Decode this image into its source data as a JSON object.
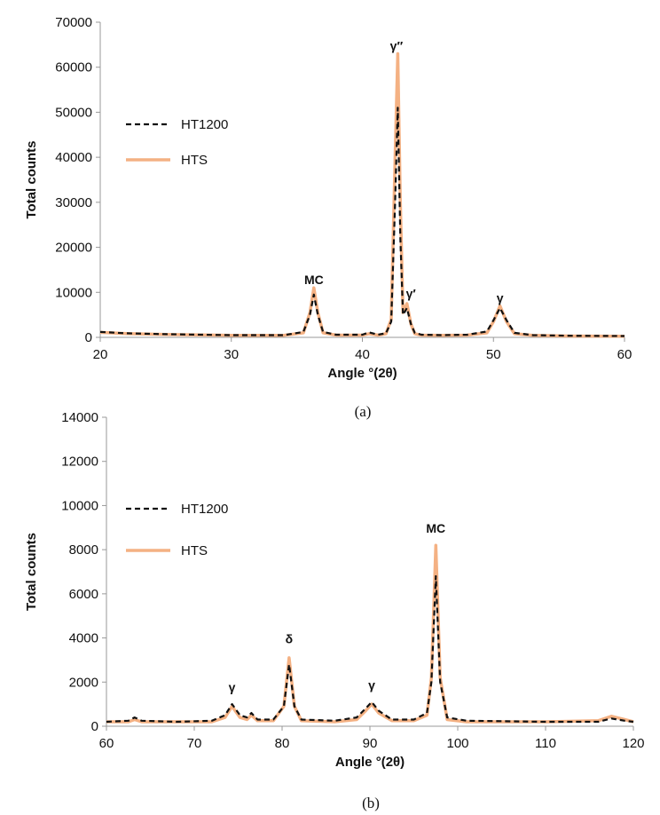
{
  "chart_data": [
    {
      "type": "line",
      "panel_label": "(a)",
      "xlabel": "Angle °(2θ)",
      "ylabel": "Total counts",
      "xlim": [
        20,
        60
      ],
      "ylim": [
        0,
        70000
      ],
      "xticks": [
        20,
        30,
        40,
        50,
        60
      ],
      "yticks": [
        0,
        10000,
        20000,
        30000,
        40000,
        50000,
        60000,
        70000
      ],
      "legend_position": "upper-left",
      "series": [
        {
          "name": "HT1200",
          "style": "dashed",
          "color": "#111111",
          "x": [
            20,
            22,
            25,
            30,
            34,
            35.5,
            36.0,
            36.3,
            36.6,
            37.0,
            38,
            40,
            40.5,
            41.2,
            41.8,
            42.2,
            42.5,
            42.7,
            42.9,
            43.1,
            43.4,
            43.7,
            44.0,
            44.5,
            46,
            48,
            49.5,
            50.0,
            50.5,
            51.0,
            51.6,
            53,
            56,
            60
          ],
          "y": [
            1200,
            900,
            700,
            500,
            500,
            1200,
            5000,
            9500,
            5000,
            1200,
            600,
            600,
            1100,
            600,
            900,
            3500,
            30000,
            51000,
            22000,
            5000,
            6500,
            3000,
            1000,
            600,
            500,
            600,
            1300,
            3800,
            6500,
            3800,
            1000,
            500,
            350,
            300
          ]
        },
        {
          "name": "HTS",
          "style": "solid",
          "color": "#f4b183",
          "x": [
            20,
            22,
            25,
            30,
            34,
            35.5,
            36.0,
            36.3,
            36.6,
            37.0,
            38,
            40,
            40.5,
            41.2,
            41.8,
            42.2,
            42.5,
            42.7,
            42.9,
            43.1,
            43.4,
            43.7,
            44.0,
            44.5,
            46,
            48,
            49.5,
            50.0,
            50.5,
            51.0,
            51.6,
            53,
            56,
            60
          ],
          "y": [
            1100,
            850,
            650,
            450,
            450,
            1000,
            5500,
            11000,
            5500,
            1000,
            500,
            500,
            800,
            500,
            800,
            4000,
            40000,
            63000,
            30000,
            5500,
            7500,
            3000,
            800,
            500,
            450,
            500,
            1000,
            3500,
            7000,
            3500,
            800,
            450,
            300,
            250
          ]
        }
      ],
      "annotations": [
        {
          "text": "MC",
          "x": 36.3,
          "y": 11000
        },
        {
          "text": "γ″",
          "x": 42.6,
          "y": 63000
        },
        {
          "text": "γ′",
          "x": 43.7,
          "y": 8000
        },
        {
          "text": "γ",
          "x": 50.5,
          "y": 7000
        }
      ]
    },
    {
      "type": "line",
      "panel_label": "(b)",
      "xlabel": "Angle °(2θ)",
      "ylabel": "Total counts",
      "xlim": [
        60,
        120
      ],
      "ylim": [
        0,
        14000
      ],
      "xticks": [
        60,
        70,
        80,
        90,
        100,
        110,
        120
      ],
      "yticks": [
        0,
        2000,
        4000,
        6000,
        8000,
        10000,
        12000,
        14000
      ],
      "legend_position": "upper-left",
      "series": [
        {
          "name": "HT1200",
          "style": "dashed",
          "color": "#111111",
          "x": [
            60,
            62.5,
            63.2,
            64,
            68,
            72,
            73.5,
            74.3,
            75.2,
            76,
            76.5,
            77.2,
            79,
            80.2,
            80.8,
            81.4,
            82.2,
            86,
            88.5,
            89.5,
            90.2,
            91.0,
            92.5,
            95,
            96.5,
            97.0,
            97.5,
            98.0,
            98.8,
            101,
            110,
            116,
            117.5,
            119,
            120
          ],
          "y": [
            200,
            250,
            400,
            250,
            200,
            250,
            500,
            1000,
            500,
            400,
            600,
            300,
            300,
            900,
            2800,
            900,
            300,
            250,
            400,
            800,
            1100,
            700,
            300,
            300,
            600,
            2000,
            6800,
            2000,
            400,
            250,
            200,
            200,
            350,
            250,
            200
          ]
        },
        {
          "name": "HTS",
          "style": "solid",
          "color": "#f4b183",
          "x": [
            60,
            62.5,
            63.2,
            64,
            68,
            72,
            73.5,
            74.3,
            75.2,
            76,
            76.5,
            77.2,
            79,
            80.2,
            80.8,
            81.4,
            82.2,
            86,
            88.5,
            89.5,
            90.2,
            91.0,
            92.5,
            95,
            96.5,
            97.0,
            97.5,
            98.0,
            98.8,
            101,
            110,
            116,
            117.5,
            119,
            120
          ],
          "y": [
            200,
            200,
            300,
            200,
            200,
            200,
            400,
            900,
            400,
            300,
            500,
            250,
            250,
            900,
            3100,
            900,
            250,
            200,
            300,
            700,
            1000,
            600,
            250,
            250,
            500,
            2200,
            8200,
            2200,
            300,
            200,
            200,
            250,
            450,
            300,
            200
          ]
        }
      ],
      "annotations": [
        {
          "text": "γ",
          "x": 74.3,
          "y": 1400
        },
        {
          "text": "δ",
          "x": 80.8,
          "y": 3600
        },
        {
          "text": "γ",
          "x": 90.2,
          "y": 1500
        },
        {
          "text": "MC",
          "x": 97.5,
          "y": 8600
        }
      ]
    }
  ]
}
